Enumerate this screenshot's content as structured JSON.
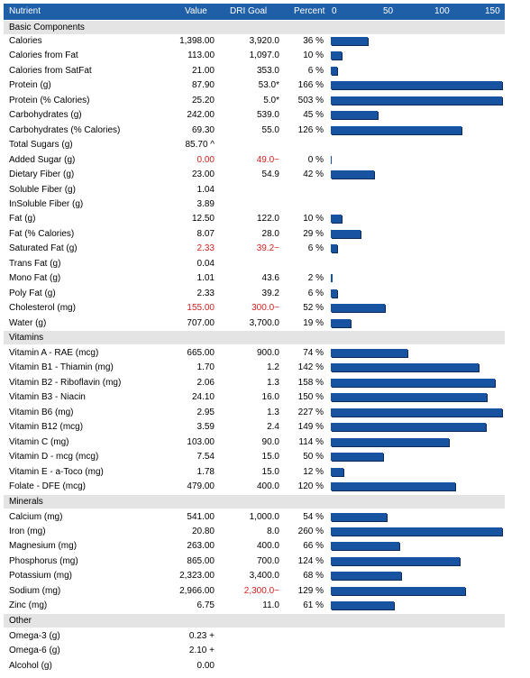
{
  "header": {
    "nutrient": "Nutrient",
    "value": "Value",
    "dri_goal": "DRI Goal",
    "percent": "Percent",
    "scale": [
      "0",
      "50",
      "100",
      "150"
    ]
  },
  "scale_max": 165,
  "bar_color": "#1753a0",
  "header_color": "#1f5fa8",
  "sections": [
    {
      "title": "Basic Components",
      "rows": [
        {
          "name": "Calories",
          "value": "1,398.00",
          "dri": "3,920.0",
          "pct": "36 %",
          "pct_num": 36
        },
        {
          "name": "Calories from Fat",
          "value": "113.00",
          "dri": "1,097.0",
          "pct": "10 %",
          "pct_num": 10
        },
        {
          "name": "Calories from SatFat",
          "value": "21.00",
          "dri": "353.0",
          "pct": "6 %",
          "pct_num": 6
        },
        {
          "name": "Protein (g)",
          "value": "87.90",
          "dri": "53.0*",
          "pct": "166 %",
          "pct_num": 166
        },
        {
          "name": "Protein (% Calories)",
          "value": "25.20",
          "dri": "5.0*",
          "pct": "503 %",
          "pct_num": 503
        },
        {
          "name": "Carbohydrates (g)",
          "value": "242.00",
          "dri": "539.0",
          "pct": "45 %",
          "pct_num": 45
        },
        {
          "name": "Carbohydrates (% Calories)",
          "value": "69.30",
          "dri": "55.0",
          "pct": "126 %",
          "pct_num": 126
        },
        {
          "name": "Total Sugars (g)",
          "value": "85.70 ^",
          "dri": "",
          "pct": "",
          "pct_num": null
        },
        {
          "name": "Added Sugar (g)",
          "value": "0.00",
          "dri": "49.0~",
          "pct": "0 %",
          "pct_num": 0,
          "red": true
        },
        {
          "name": "Dietary Fiber (g)",
          "value": "23.00",
          "dri": "54.9",
          "pct": "42 %",
          "pct_num": 42
        },
        {
          "name": "Soluble Fiber (g)",
          "value": "1.04",
          "dri": "",
          "pct": "",
          "pct_num": null
        },
        {
          "name": "InSoluble Fiber (g)",
          "value": "3.89",
          "dri": "",
          "pct": "",
          "pct_num": null
        },
        {
          "name": "Fat (g)",
          "value": "12.50",
          "dri": "122.0",
          "pct": "10 %",
          "pct_num": 10
        },
        {
          "name": "Fat (% Calories)",
          "value": "8.07",
          "dri": "28.0",
          "pct": "29 %",
          "pct_num": 29
        },
        {
          "name": "Saturated Fat (g)",
          "value": "2.33",
          "dri": "39.2~",
          "pct": "6 %",
          "pct_num": 6,
          "red": true
        },
        {
          "name": "Trans Fat (g)",
          "value": "0.04",
          "dri": "",
          "pct": "",
          "pct_num": null
        },
        {
          "name": "Mono Fat (g)",
          "value": "1.01",
          "dri": "43.6",
          "pct": "2 %",
          "pct_num": 2
        },
        {
          "name": "Poly Fat (g)",
          "value": "2.33",
          "dri": "39.2",
          "pct": "6 %",
          "pct_num": 6
        },
        {
          "name": "Cholesterol (mg)",
          "value": "155.00",
          "dri": "300.0~",
          "pct": "52 %",
          "pct_num": 52,
          "red": true
        },
        {
          "name": "Water (g)",
          "value": "707.00",
          "dri": "3,700.0",
          "pct": "19 %",
          "pct_num": 19
        }
      ]
    },
    {
      "title": "Vitamins",
      "rows": [
        {
          "name": "Vitamin A - RAE (mcg)",
          "value": "665.00",
          "dri": "900.0",
          "pct": "74 %",
          "pct_num": 74
        },
        {
          "name": "Vitamin B1 - Thiamin (mg)",
          "value": "1.70",
          "dri": "1.2",
          "pct": "142 %",
          "pct_num": 142
        },
        {
          "name": "Vitamin B2 - Riboflavin (mg)",
          "value": "2.06",
          "dri": "1.3",
          "pct": "158 %",
          "pct_num": 158
        },
        {
          "name": "Vitamin B3 - Niacin",
          "value": "24.10",
          "dri": "16.0",
          "pct": "150 %",
          "pct_num": 150
        },
        {
          "name": "Vitamin B6 (mg)",
          "value": "2.95",
          "dri": "1.3",
          "pct": "227 %",
          "pct_num": 227
        },
        {
          "name": "Vitamin B12 (mcg)",
          "value": "3.59",
          "dri": "2.4",
          "pct": "149 %",
          "pct_num": 149
        },
        {
          "name": "Vitamin C (mg)",
          "value": "103.00",
          "dri": "90.0",
          "pct": "114 %",
          "pct_num": 114
        },
        {
          "name": "Vitamin D - mcg (mcg)",
          "value": "7.54",
          "dri": "15.0",
          "pct": "50 %",
          "pct_num": 50
        },
        {
          "name": "Vitamin E - a-Toco (mg)",
          "value": "1.78",
          "dri": "15.0",
          "pct": "12 %",
          "pct_num": 12
        },
        {
          "name": "Folate - DFE (mcg)",
          "value": "479.00",
          "dri": "400.0",
          "pct": "120 %",
          "pct_num": 120
        }
      ]
    },
    {
      "title": "Minerals",
      "rows": [
        {
          "name": "Calcium (mg)",
          "value": "541.00",
          "dri": "1,000.0",
          "pct": "54 %",
          "pct_num": 54
        },
        {
          "name": "Iron (mg)",
          "value": "20.80",
          "dri": "8.0",
          "pct": "260 %",
          "pct_num": 260
        },
        {
          "name": "Magnesium (mg)",
          "value": "263.00",
          "dri": "400.0",
          "pct": "66 %",
          "pct_num": 66
        },
        {
          "name": "Phosphorus (mg)",
          "value": "865.00",
          "dri": "700.0",
          "pct": "124 %",
          "pct_num": 124
        },
        {
          "name": "Potassium (mg)",
          "value": "2,323.00",
          "dri": "3,400.0",
          "pct": "68 %",
          "pct_num": 68
        },
        {
          "name": "Sodium (mg)",
          "value": "2,966.00",
          "dri": "2,300.0~",
          "pct": "129 %",
          "pct_num": 129,
          "red_dri": true
        },
        {
          "name": "Zinc (mg)",
          "value": "6.75",
          "dri": "11.0",
          "pct": "61 %",
          "pct_num": 61
        }
      ]
    },
    {
      "title": "Other",
      "rows": [
        {
          "name": "Omega-3 (g)",
          "value": "0.23 +",
          "dri": "",
          "pct": "",
          "pct_num": null
        },
        {
          "name": "Omega-6 (g)",
          "value": "2.10 +",
          "dri": "",
          "pct": "",
          "pct_num": null
        },
        {
          "name": "Alcohol (g)",
          "value": "0.00",
          "dri": "",
          "pct": "",
          "pct_num": null
        }
      ]
    }
  ]
}
